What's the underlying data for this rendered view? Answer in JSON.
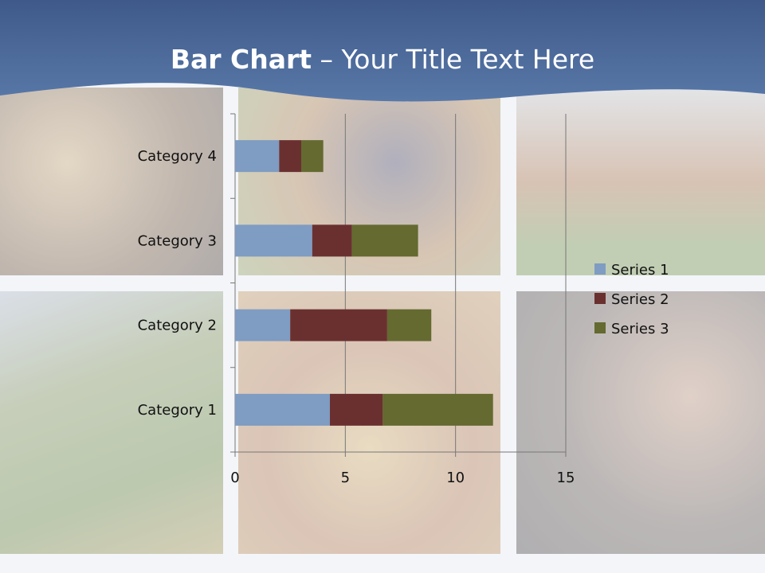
{
  "slide": {
    "title_bold": "Bar Chart",
    "title_rest": " – Your Title Text Here"
  },
  "chart_data": {
    "type": "bar",
    "orientation": "horizontal",
    "stacked": true,
    "categories": [
      "Category 1",
      "Category 2",
      "Category 3",
      "Category 4"
    ],
    "series": [
      {
        "name": "Series 1",
        "values": [
          4.3,
          2.5,
          3.5,
          2.0
        ],
        "color": "#7f9cc2"
      },
      {
        "name": "Series 2",
        "values": [
          2.4,
          4.4,
          1.8,
          1.0
        ],
        "color": "#6a3030"
      },
      {
        "name": "Series 3",
        "values": [
          5.0,
          2.0,
          3.0,
          1.0
        ],
        "color": "#646a30"
      }
    ],
    "xlim": [
      0,
      15
    ],
    "xticks": [
      "0",
      "5",
      "10",
      "15"
    ],
    "grid": true,
    "legend": "right"
  }
}
